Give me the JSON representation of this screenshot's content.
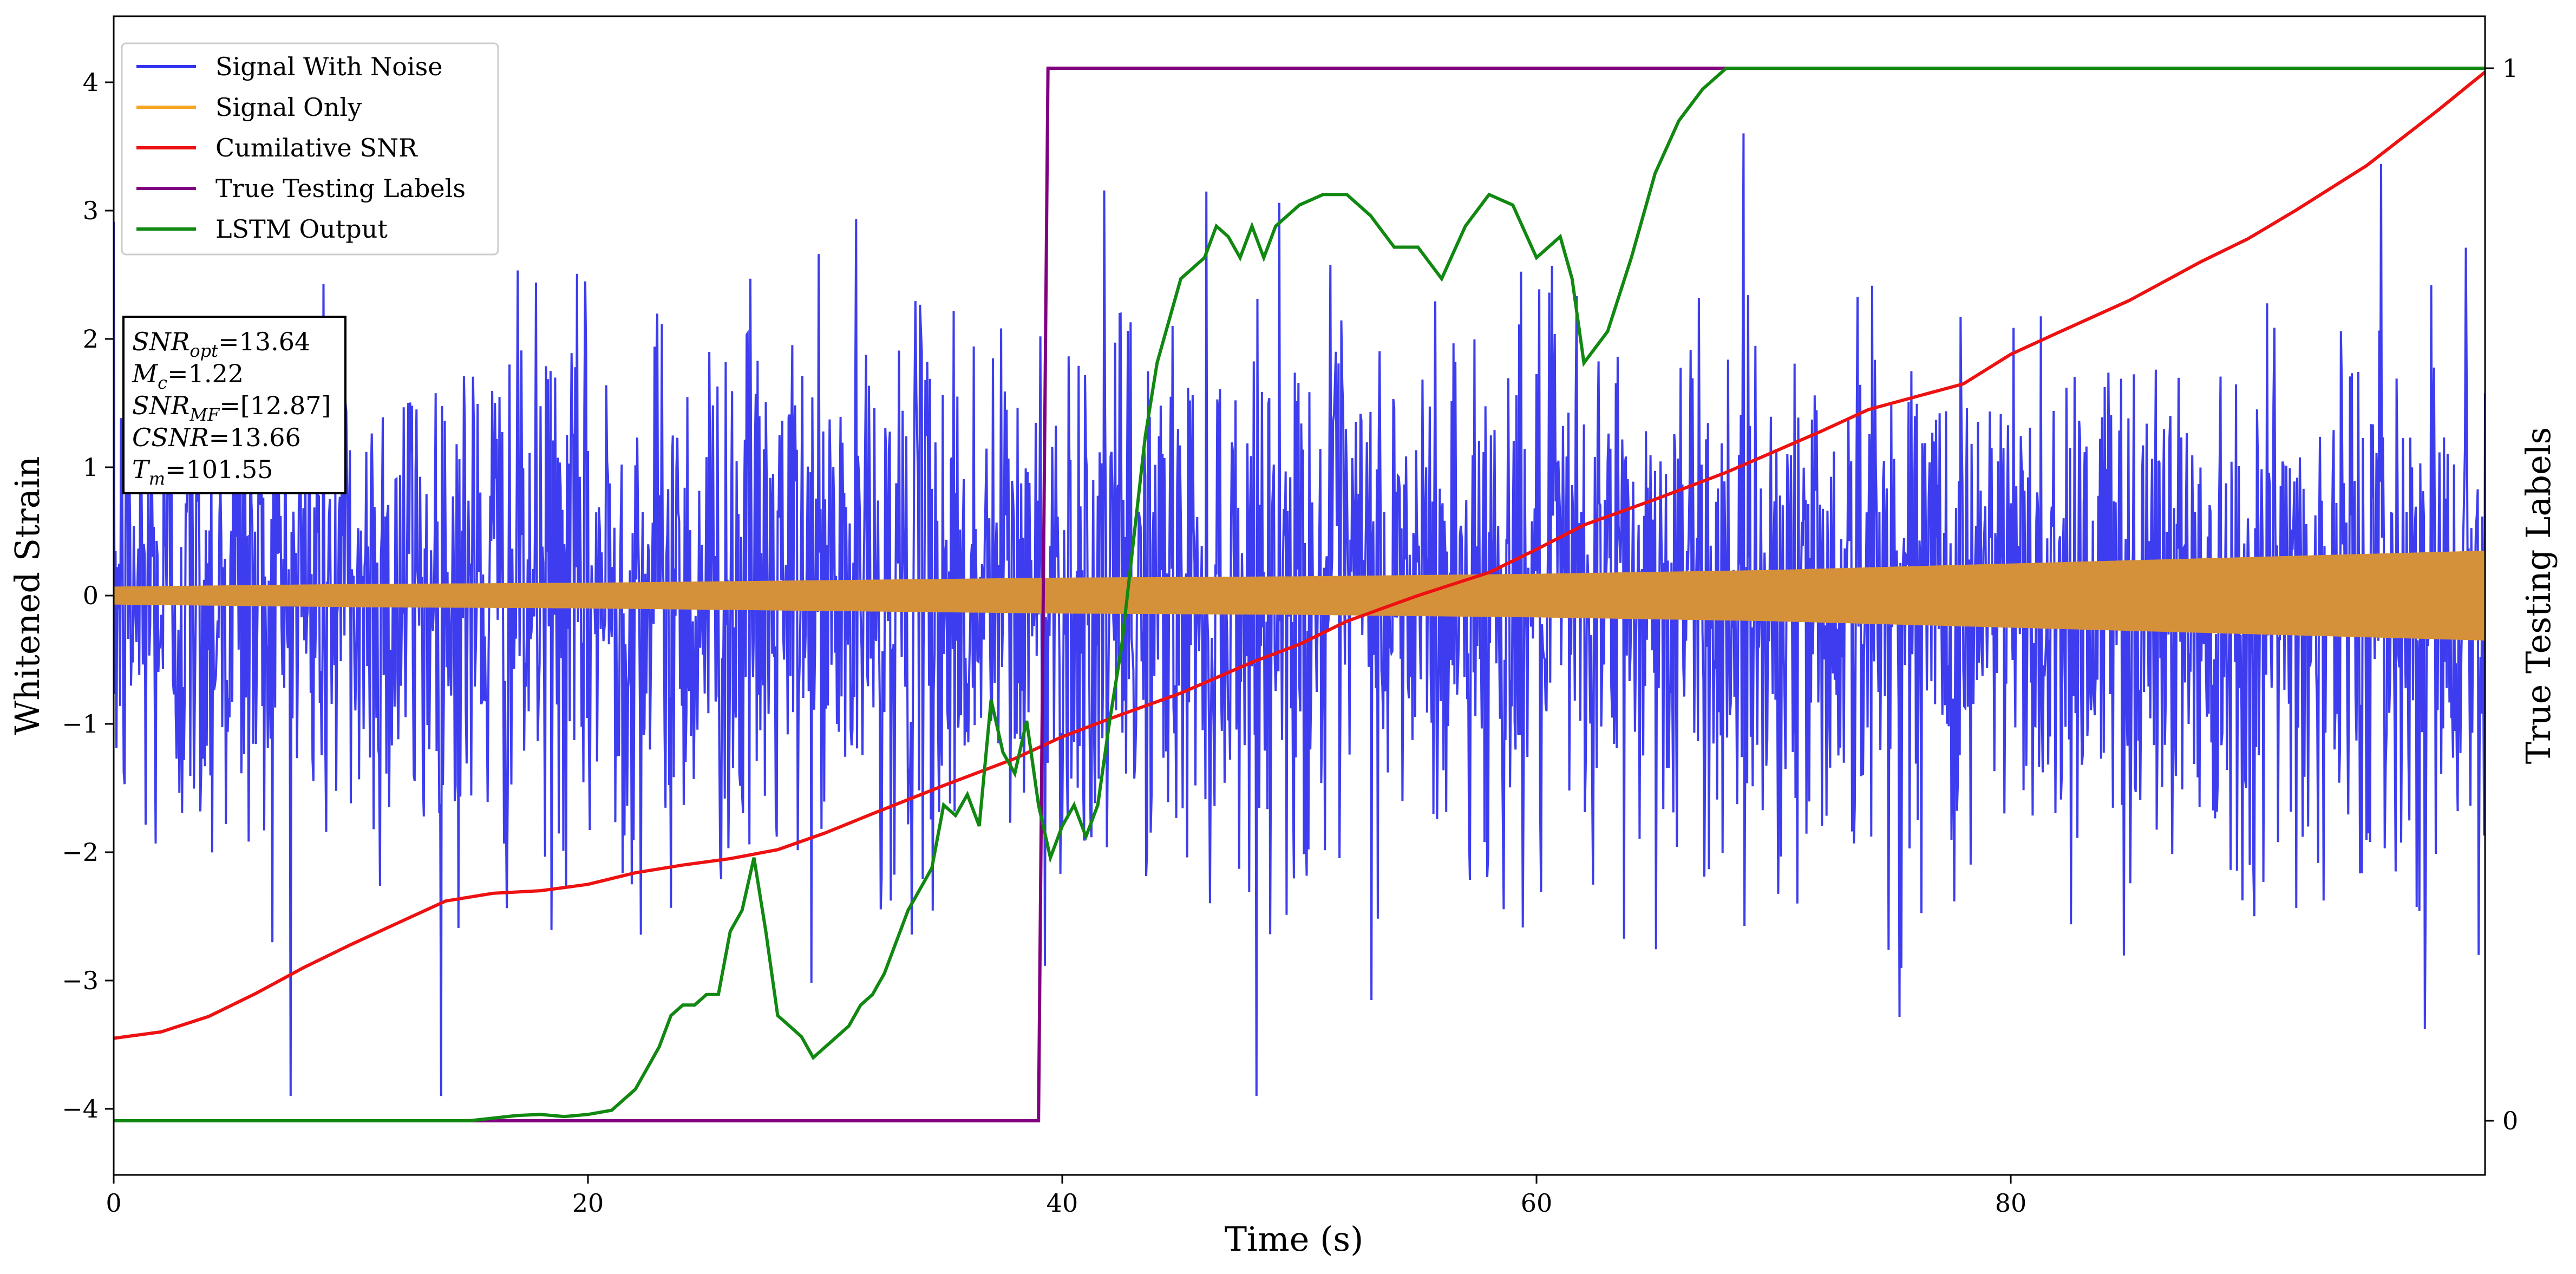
{
  "chart_data": {
    "type": "line",
    "xlabel": "Time (s)",
    "ylabel": "Whitened Strain",
    "y2label": "True Testing Labels",
    "xlim": [
      0,
      100
    ],
    "ylim": [
      -4.45,
      4.6
    ],
    "y2lim": [
      -0.05,
      1.05
    ],
    "xticks": [
      0,
      20,
      40,
      60,
      80
    ],
    "yticks": [
      -4,
      -3,
      -2,
      -1,
      0,
      1,
      2,
      3,
      4
    ],
    "y2ticks": [
      0,
      1
    ],
    "grid": false,
    "legend_position": "top-left",
    "series": [
      {
        "name": "Signal With Noise",
        "color": "#3333ee",
        "axis": "left",
        "description_points": "dense noisy strain, roughly between -3.8 and 4.1"
      },
      {
        "name": "Signal Only",
        "color": "#f5a623",
        "axis": "left",
        "envelope": {
          "x": [
            0,
            10,
            20,
            30,
            40,
            50,
            60,
            70,
            80,
            90,
            100
          ],
          "amplitude": [
            0.07,
            0.09,
            0.1,
            0.12,
            0.14,
            0.15,
            0.17,
            0.2,
            0.25,
            0.3,
            0.35
          ]
        }
      },
      {
        "name": "Cumilative SNR",
        "color": "#ee1111",
        "axis": "left",
        "x": [
          0,
          2,
          4,
          6,
          8,
          10,
          12,
          14,
          16,
          18,
          20,
          22,
          24,
          26,
          28,
          30,
          32,
          35,
          38,
          40,
          42,
          45,
          48,
          50,
          52,
          55,
          58,
          60,
          62,
          65,
          68,
          70,
          72,
          74,
          76,
          78,
          80,
          82,
          85,
          88,
          90,
          92,
          95,
          98,
          100
        ],
        "y": [
          -3.45,
          -3.4,
          -3.28,
          -3.1,
          -2.9,
          -2.72,
          -2.55,
          -2.38,
          -2.32,
          -2.3,
          -2.25,
          -2.16,
          -2.1,
          -2.05,
          -1.98,
          -1.85,
          -1.7,
          -1.48,
          -1.27,
          -1.1,
          -0.96,
          -0.76,
          -0.52,
          -0.38,
          -0.2,
          0.0,
          0.18,
          0.36,
          0.55,
          0.75,
          0.96,
          1.12,
          1.28,
          1.45,
          1.55,
          1.65,
          1.88,
          2.05,
          2.3,
          2.6,
          2.78,
          3.0,
          3.35,
          3.78,
          4.08
        ]
      },
      {
        "name": "True Testing Labels",
        "color": "#800080",
        "axis": "right",
        "x": [
          0,
          39,
          39.4,
          100
        ],
        "y": [
          0,
          0,
          1,
          1
        ]
      },
      {
        "name": "LSTM Output",
        "color": "#118811",
        "axis": "right",
        "x": [
          0,
          12,
          15,
          17,
          18,
          19,
          20,
          21,
          21.5,
          22,
          22.5,
          23,
          23.5,
          24,
          24.5,
          25,
          25.5,
          26,
          26.5,
          27,
          27.5,
          28,
          28.5,
          29,
          29.5,
          30,
          30.5,
          31,
          31.5,
          32,
          32.5,
          33,
          33.5,
          34,
          34.5,
          35,
          35.5,
          36,
          36.5,
          37,
          37.5,
          38,
          38.5,
          39,
          39.5,
          40,
          40.5,
          41,
          41.5,
          42,
          42.5,
          43,
          43.5,
          44,
          45,
          46,
          46.5,
          47,
          47.5,
          48,
          48.5,
          49,
          50,
          51,
          52,
          53,
          54,
          55,
          56,
          57,
          58,
          59,
          60,
          61,
          61.5,
          62,
          63,
          64,
          65,
          66,
          67,
          68,
          69,
          70,
          72,
          75,
          80,
          90,
          100
        ],
        "y": [
          0,
          0,
          0,
          0.005,
          0.006,
          0.004,
          0.006,
          0.01,
          0.02,
          0.03,
          0.05,
          0.07,
          0.1,
          0.11,
          0.11,
          0.12,
          0.12,
          0.18,
          0.2,
          0.25,
          0.18,
          0.1,
          0.09,
          0.08,
          0.06,
          0.07,
          0.08,
          0.09,
          0.11,
          0.12,
          0.14,
          0.17,
          0.2,
          0.22,
          0.24,
          0.3,
          0.29,
          0.31,
          0.28,
          0.4,
          0.35,
          0.33,
          0.38,
          0.3,
          0.25,
          0.28,
          0.3,
          0.27,
          0.3,
          0.38,
          0.45,
          0.55,
          0.65,
          0.72,
          0.8,
          0.82,
          0.85,
          0.84,
          0.82,
          0.85,
          0.82,
          0.85,
          0.87,
          0.88,
          0.88,
          0.86,
          0.83,
          0.83,
          0.8,
          0.85,
          0.88,
          0.87,
          0.82,
          0.84,
          0.8,
          0.72,
          0.75,
          0.82,
          0.9,
          0.95,
          0.98,
          1.0,
          1.0,
          1.0,
          1.0,
          1.0,
          1.0,
          1.0,
          1.0
        ]
      }
    ]
  },
  "info_box": [
    {
      "pre": "SNR",
      "sub": "opt",
      "post": "=13.64",
      "italic": true
    },
    {
      "pre": "M",
      "sub": "c",
      "post": "=1.22",
      "italic": true
    },
    {
      "pre": "SNR",
      "sub": "MF",
      "post": "=[12.87]",
      "italic": true
    },
    {
      "pre": "CSNR",
      "sub": "",
      "post": "=13.66",
      "italic": true
    },
    {
      "pre": "T",
      "sub": "m",
      "post": "=101.55",
      "italic": true
    }
  ]
}
